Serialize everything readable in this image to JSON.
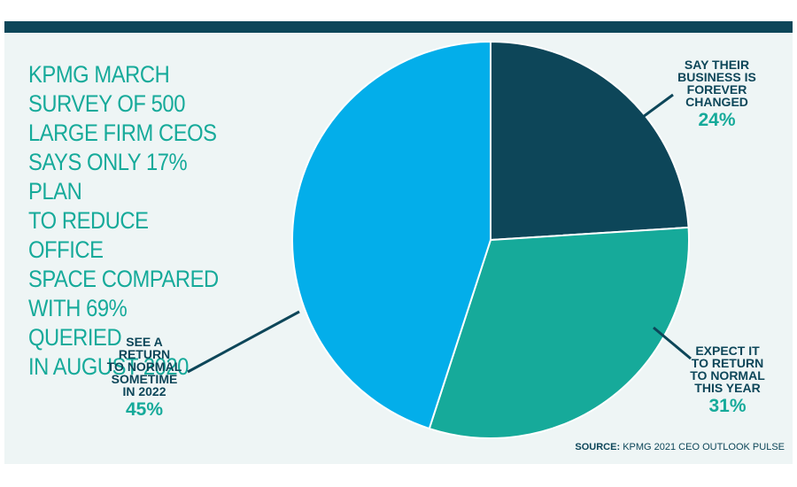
{
  "headline": "KPMG March survey of 500 large firm CEOs says only 17% plan to reduce office space compared with 69% queried in August 2020",
  "source": {
    "label": "SOURCE:",
    "text": "KPMG 2021 CEO OUTLOOK PULSE"
  },
  "colors": {
    "dark_teal": "#0d4659",
    "green_teal": "#16aa9a",
    "sky_blue": "#03aeea",
    "background": "#eef5f5"
  },
  "chart_data": {
    "type": "pie",
    "slices": [
      {
        "label": "Say their business is forever changed",
        "value": 24,
        "display": "24%",
        "color": "#0d4659"
      },
      {
        "label": "Expect it to return to normal this year",
        "value": 31,
        "display": "31%",
        "color": "#16aa9a"
      },
      {
        "label": "See a return to normal sometime in 2022",
        "value": 45,
        "display": "45%",
        "color": "#03aeea"
      }
    ]
  }
}
